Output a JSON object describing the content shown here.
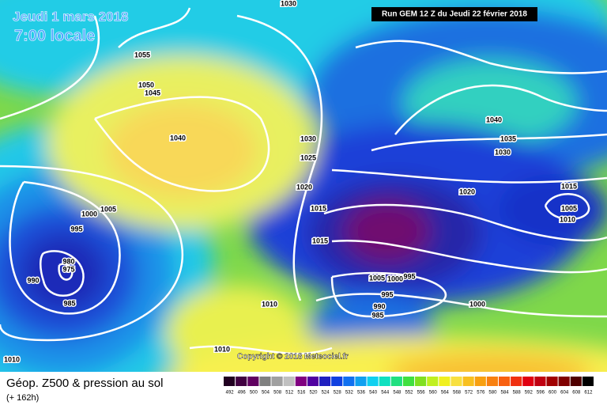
{
  "header": {
    "date": "Jeudi 1 mars 2018",
    "time": "7:00 locale",
    "run": "Run GEM 12 Z du Jeudi 22 février 2018"
  },
  "copyright": "Copyright © 2018 Meteociel.fr",
  "footer": {
    "title": "Géop. Z500 & pression au sol",
    "subtitle": "(+ 162h)"
  },
  "isobar_labels": [
    "1030",
    "1055",
    "1050",
    "1045",
    "1040",
    "1030",
    "1025",
    "1020",
    "1015",
    "1005",
    "1000",
    "995",
    "980",
    "975",
    "990",
    "985",
    "1015",
    "1010",
    "1010",
    "1010",
    "1040",
    "1035",
    "1030",
    "1020",
    "1015",
    "1005",
    "1010",
    "1005",
    "1000",
    "995",
    "995",
    "990",
    "985",
    "1000"
  ],
  "colorbar": {
    "labels": [
      492,
      496,
      500,
      504,
      508,
      512,
      516,
      520,
      524,
      528,
      532,
      536,
      540,
      544,
      548,
      552,
      556,
      560,
      564,
      568,
      572,
      576,
      580,
      584,
      588,
      592,
      596,
      600,
      604,
      608,
      612
    ],
    "colors": [
      "#200020",
      "#400040",
      "#600060",
      "#808080",
      "#a0a0a0",
      "#c0c0c0",
      "#800080",
      "#5000a0",
      "#2020c0",
      "#1040e0",
      "#1070f0",
      "#10a0f0",
      "#10d0f0",
      "#10e0c0",
      "#20e080",
      "#40e040",
      "#80e020",
      "#c0f020",
      "#f0f020",
      "#f8e040",
      "#f8c020",
      "#f8a010",
      "#f88010",
      "#f86010",
      "#f03010",
      "#e00010",
      "#c00010",
      "#a00000",
      "#800000",
      "#500000",
      "#000000"
    ]
  }
}
